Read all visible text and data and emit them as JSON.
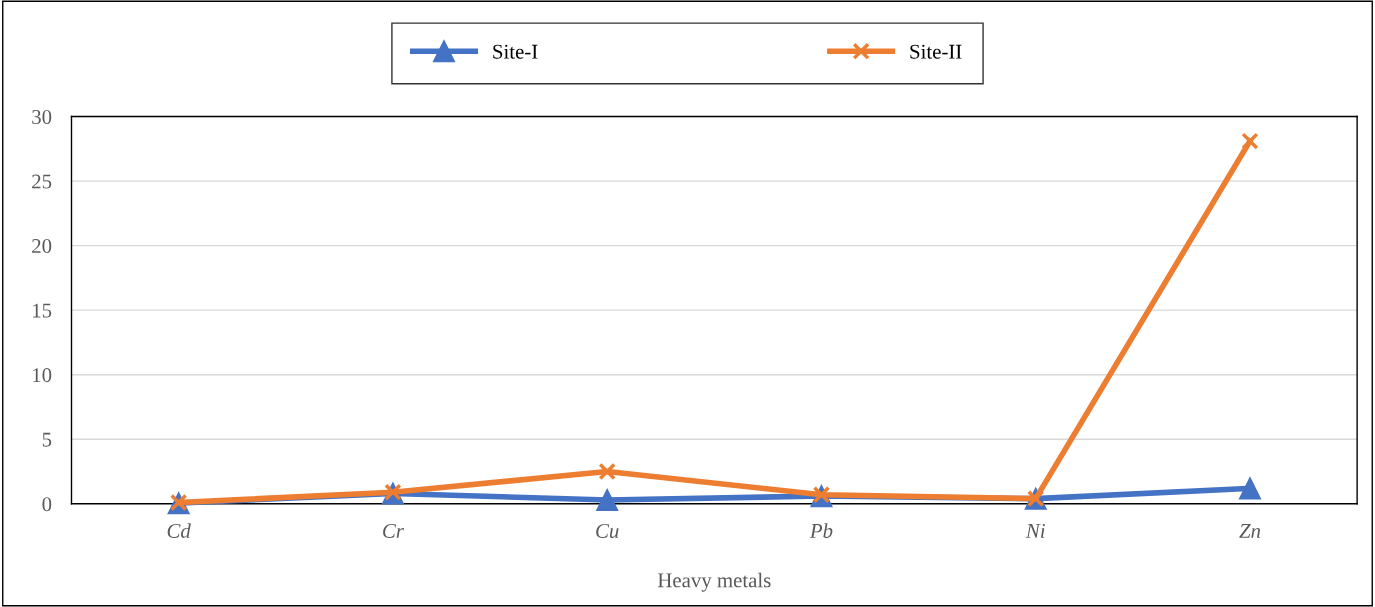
{
  "chart_data": {
    "type": "line",
    "xlabel": "Heavy metals",
    "categories": [
      "Cd",
      "Cr",
      "Cu",
      "Pb",
      "Ni",
      "Zn"
    ],
    "series": [
      {
        "name": "Site-I",
        "color": "#4472c4",
        "marker": "triangle",
        "values": [
          0.05,
          0.8,
          0.3,
          0.6,
          0.4,
          1.2
        ]
      },
      {
        "name": "Site-II",
        "color": "#ed7d31",
        "marker": "cross",
        "values": [
          0.1,
          0.9,
          2.5,
          0.7,
          0.4,
          28.1
        ]
      }
    ],
    "ylim": [
      0,
      30
    ],
    "yticks": [
      0,
      5,
      10,
      15,
      20,
      25,
      30
    ],
    "grid": "y",
    "legend": "top",
    "line_style": "solid"
  }
}
